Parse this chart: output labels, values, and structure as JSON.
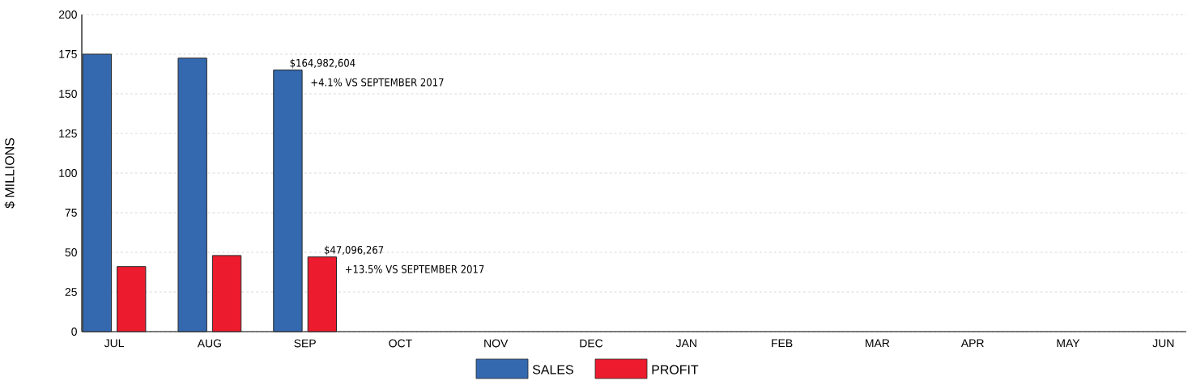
{
  "chart_data": {
    "type": "bar",
    "ylabel": "$ MILLIONS",
    "categories": [
      "JUL",
      "AUG",
      "SEP",
      "OCT",
      "NOV",
      "DEC",
      "JAN",
      "FEB",
      "MAR",
      "APR",
      "MAY",
      "JUN"
    ],
    "series": [
      {
        "name": "SALES",
        "color": "#3469b0",
        "values": [
          175,
          172.5,
          165,
          null,
          null,
          null,
          null,
          null,
          null,
          null,
          null,
          null
        ]
      },
      {
        "name": "PROFIT",
        "color": "#ec1b2e",
        "values": [
          41,
          48,
          47.1,
          null,
          null,
          null,
          null,
          null,
          null,
          null,
          null,
          null
        ]
      }
    ],
    "annotations": [
      {
        "text": "$164,982,604",
        "x": "SEP",
        "y": 165
      },
      "+4.1% VS SEPTEMBER 2017",
      {
        "text": "$47,096,267",
        "x": "SEP",
        "y": 47.1
      },
      "+13.5% VS SEPTEMBER 2017"
    ],
    "ylim": [
      0,
      200
    ],
    "yticks": [
      0,
      25,
      50,
      75,
      100,
      125,
      150,
      175,
      200
    ],
    "grid": "y",
    "legend": "bottom"
  }
}
